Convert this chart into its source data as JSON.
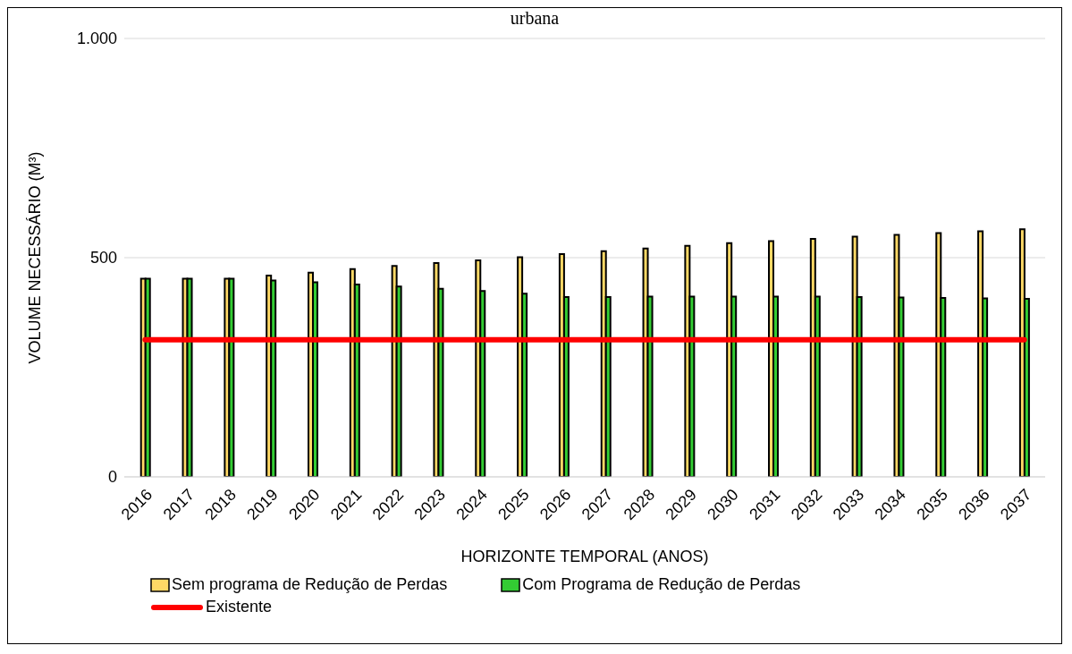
{
  "chart_data": {
    "type": "bar",
    "title": "urbana",
    "xlabel": "HORIZONTE TEMPORAL (ANOS)",
    "ylabel": "VOLUME NECESSÁRIO (M³)",
    "categories": [
      "2016",
      "2017",
      "2018",
      "2019",
      "2020",
      "2021",
      "2022",
      "2023",
      "2024",
      "2025",
      "2026",
      "2027",
      "2028",
      "2029",
      "2030",
      "2031",
      "2032",
      "2033",
      "2034",
      "2035",
      "2036",
      "2037"
    ],
    "series": [
      {
        "name": "Sem programa de Redução de Perdas",
        "color": "#ffd966",
        "values": [
          452,
          452,
          452,
          459,
          466,
          474,
          481,
          488,
          494,
          501,
          508,
          515,
          521,
          527,
          533,
          538,
          543,
          548,
          552,
          556,
          560,
          565
        ]
      },
      {
        "name": "Com Programa de Redução de Perdas",
        "color": "#33cc33",
        "values": [
          452,
          452,
          452,
          448,
          444,
          439,
          434,
          429,
          424,
          418,
          410,
          410,
          411,
          411,
          411,
          411,
          411,
          410,
          409,
          408,
          407,
          406
        ]
      },
      {
        "name": "Existente",
        "type": "line",
        "color": "#ff0000",
        "values": [
          313,
          313,
          313,
          313,
          313,
          313,
          313,
          313,
          313,
          313,
          313,
          313,
          313,
          313,
          313,
          313,
          313,
          313,
          313,
          313,
          313,
          313
        ]
      }
    ],
    "ylim": [
      0,
      1000
    ],
    "yticks": [
      0,
      500,
      {
        "value": 1000,
        "label": "1.000"
      }
    ],
    "grid": "y",
    "legend": "bottom",
    "marker": "none",
    "line_style": "solid"
  }
}
